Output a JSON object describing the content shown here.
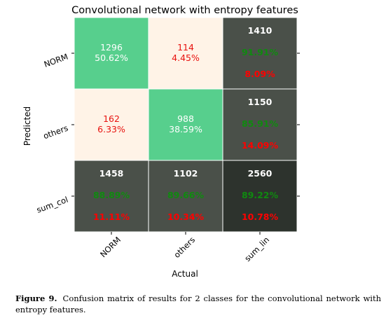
{
  "chart_data": {
    "type": "heatmap",
    "title": "Convolutional network with entropy features",
    "xlabel": "Actual",
    "ylabel": "Predicted",
    "x_categories": [
      "NORM",
      "others",
      "sum_lin"
    ],
    "y_categories": [
      "NORM",
      "others",
      "sum_col"
    ],
    "cells": [
      [
        {
          "count": "1296",
          "percent": "50.62%"
        },
        {
          "count": "114",
          "percent": "4.45%"
        },
        {
          "count": "1410",
          "percent": "91.91%",
          "percent2": "8.09%"
        }
      ],
      [
        {
          "count": "162",
          "percent": "6.33%"
        },
        {
          "count": "988",
          "percent": "38.59%"
        },
        {
          "count": "1150",
          "percent": "85.91%",
          "percent2": "14.09%"
        }
      ],
      [
        {
          "count": "1458",
          "percent": "88.89%",
          "percent2": "11.11%"
        },
        {
          "count": "1102",
          "percent": "89.66%",
          "percent2": "10.34%"
        },
        {
          "count": "2560",
          "percent": "89.22%",
          "percent2": "10.78%"
        }
      ]
    ],
    "colors": {
      "correct": "#57cf8d",
      "error": "#fff3e7",
      "totals": "#4a5049",
      "grand_total": "#2d332d",
      "text_correct": "#ffffff",
      "text_error": "#e8120f",
      "text_good_pct": "#0f8a0f",
      "text_bad_pct": "#ff0000"
    }
  },
  "caption": {
    "label": "Figure 9.",
    "text": "Confusion matrix of results for 2 classes for the convolutional network with entropy features."
  }
}
